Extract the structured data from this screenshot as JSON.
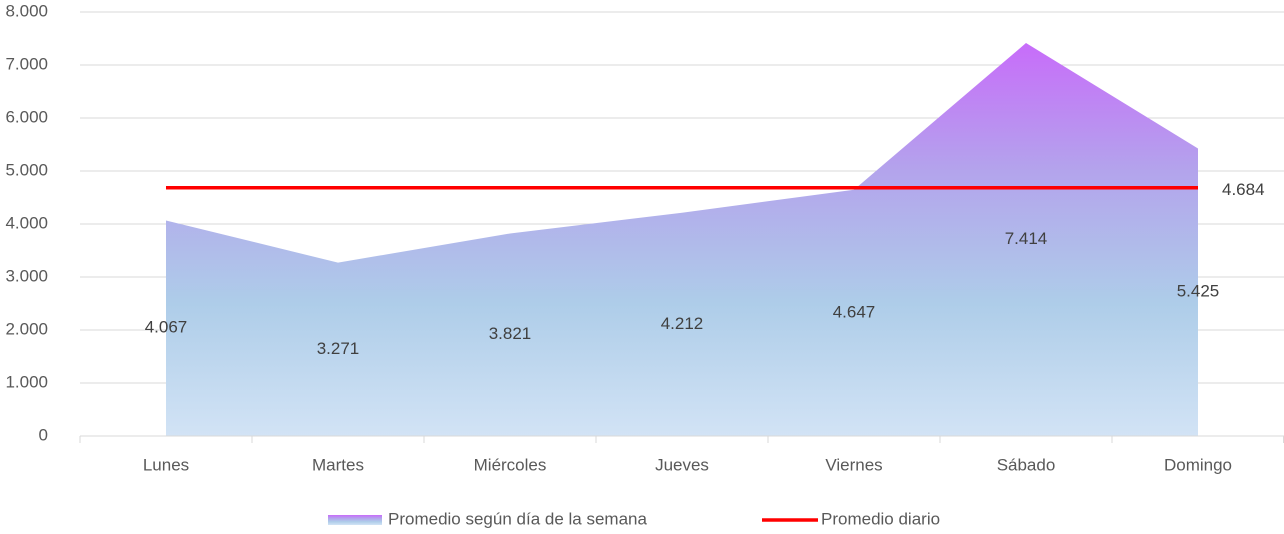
{
  "chart_data": {
    "type": "area",
    "categories": [
      "Lunes",
      "Martes",
      "Miércoles",
      "Jueves",
      "Viernes",
      "Sábado",
      "Domingo"
    ],
    "series": [
      {
        "name": "Promedio según día de la semana",
        "type": "area",
        "color": [
          "#c86bfa",
          "#b3a4ec",
          "#aecde9",
          "#d2e3f5"
        ],
        "values": [
          4067,
          3271,
          3821,
          4212,
          4647,
          7414,
          5425
        ],
        "value_labels": [
          "4.067",
          "3.271",
          "3.821",
          "4.212",
          "4.647",
          "7.414",
          "5.425"
        ]
      },
      {
        "name": "Promedio diario",
        "type": "line",
        "color": "#ff0000",
        "values": [
          4684,
          4684,
          4684,
          4684,
          4684,
          4684,
          4684
        ],
        "value_labels": [
          null,
          null,
          null,
          null,
          null,
          null,
          "4.684"
        ]
      }
    ],
    "ylim": [
      0,
      8000
    ],
    "yticks": [
      0,
      {
        "value": 1000,
        "label": "1.000"
      },
      {
        "value": 2000,
        "label": "2.000"
      },
      {
        "value": 3000,
        "label": "3.000"
      },
      {
        "value": 4000,
        "label": "4.000"
      },
      {
        "value": 5000,
        "label": "5.000"
      },
      {
        "value": 6000,
        "label": "6.000"
      },
      {
        "value": 7000,
        "label": "7.000"
      },
      {
        "value": 8000,
        "label": "8.000"
      }
    ],
    "grid": true,
    "legend": "bottom"
  }
}
